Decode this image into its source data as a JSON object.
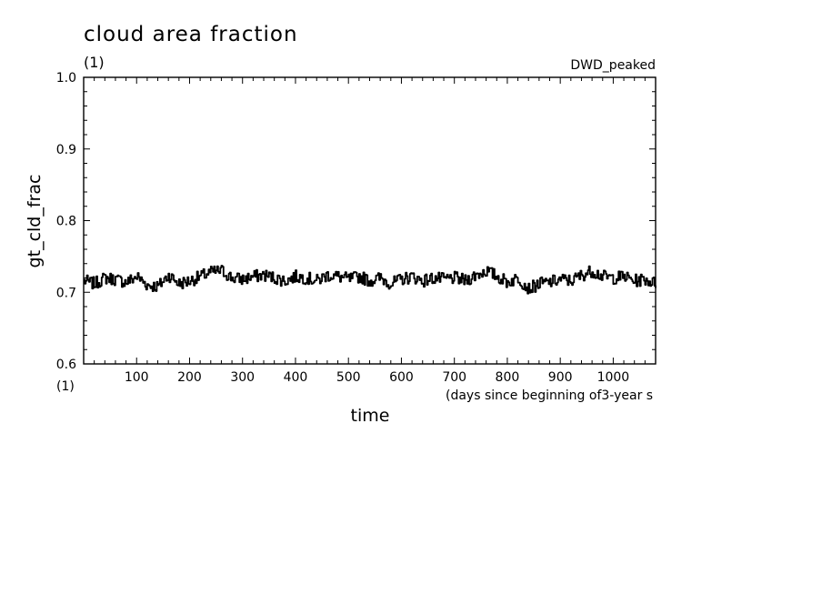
{
  "chart_data": {
    "type": "line",
    "title": "cloud area fraction",
    "title_units": "(1)",
    "dataset_label": "DWD_peaked",
    "ylabel": "gt_cld_frac",
    "y_units": "(1)",
    "xlabel": "time",
    "x_units": "(days since beginning of3-year s",
    "xlim": [
      0,
      1080
    ],
    "ylim": [
      0.6,
      1.0
    ],
    "x_ticks": [
      "100",
      "200",
      "300",
      "400",
      "500",
      "600",
      "700",
      "800",
      "900",
      "1000"
    ],
    "y_ticks": [
      "0.6",
      "0.7",
      "0.8",
      "0.9",
      "1.0"
    ],
    "grid": false,
    "series": [
      {
        "x": [
          0,
          20,
          40,
          60,
          80,
          100,
          120,
          140,
          160,
          180,
          200,
          220,
          240,
          260,
          280,
          300,
          320,
          340,
          360,
          380,
          400,
          420,
          440,
          460,
          480,
          500,
          520,
          540,
          560,
          580,
          600,
          620,
          640,
          660,
          680,
          700,
          720,
          740,
          760,
          780,
          800,
          820,
          840,
          860,
          880,
          900,
          920,
          940,
          960,
          980,
          1000,
          1020,
          1040,
          1060,
          1080
        ],
        "values": [
          0.716,
          0.712,
          0.72,
          0.718,
          0.714,
          0.722,
          0.71,
          0.708,
          0.724,
          0.712,
          0.716,
          0.722,
          0.728,
          0.73,
          0.72,
          0.718,
          0.722,
          0.724,
          0.72,
          0.716,
          0.722,
          0.72,
          0.716,
          0.724,
          0.722,
          0.718,
          0.722,
          0.716,
          0.72,
          0.712,
          0.718,
          0.722,
          0.716,
          0.72,
          0.718,
          0.72,
          0.716,
          0.724,
          0.73,
          0.722,
          0.714,
          0.72,
          0.705,
          0.712,
          0.714,
          0.718,
          0.716,
          0.724,
          0.73,
          0.722,
          0.72,
          0.722,
          0.716,
          0.718,
          0.712
        ]
      }
    ]
  }
}
